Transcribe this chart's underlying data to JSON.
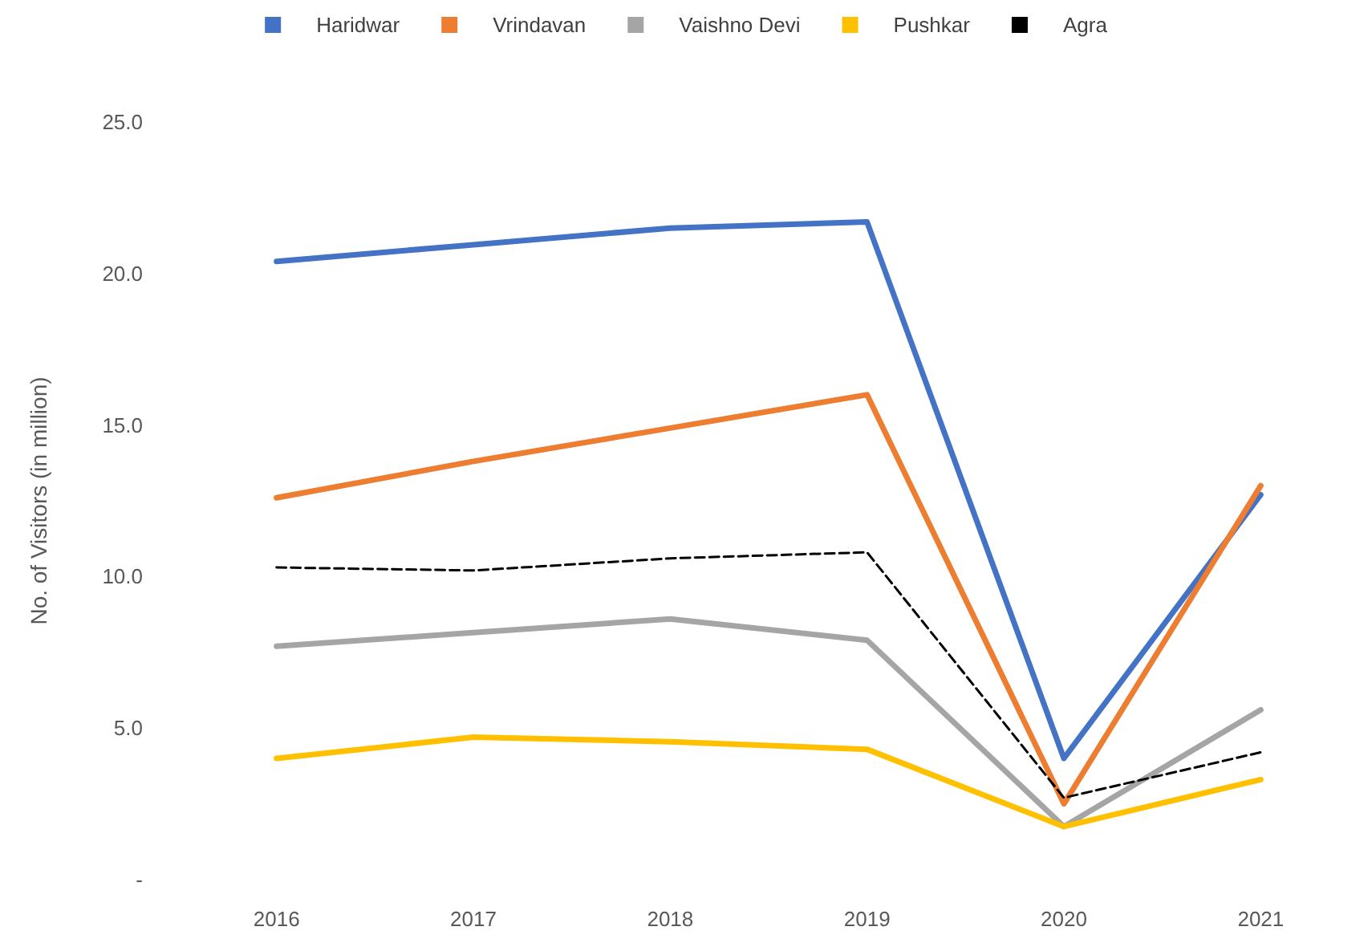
{
  "chart_data": {
    "type": "line",
    "ylabel": "No. of Visitors (in million)",
    "categories": [
      "2016",
      "2017",
      "2018",
      "2019",
      "2020",
      "2021"
    ],
    "series": [
      {
        "name": "Haridwar",
        "color": "#4472c4",
        "values": [
          20.4,
          20.95,
          21.5,
          21.7,
          4.0,
          12.7
        ]
      },
      {
        "name": "Vrindavan",
        "color": "#ed7d31",
        "values": [
          12.6,
          13.8,
          14.9,
          16.0,
          2.5,
          13.0
        ]
      },
      {
        "name": "Vaishno Devi",
        "color": "#a5a5a5",
        "values": [
          7.7,
          8.15,
          8.6,
          7.9,
          1.75,
          5.6
        ]
      },
      {
        "name": "Pushkar",
        "color": "#ffc000",
        "values": [
          4.0,
          4.7,
          4.55,
          4.3,
          1.75,
          3.3
        ]
      },
      {
        "name": "Agra",
        "color": "#000000",
        "line_style": "dashed",
        "values": [
          10.3,
          10.2,
          10.6,
          10.8,
          2.7,
          4.2
        ]
      }
    ],
    "ylim": [
      0,
      25
    ],
    "yticks": [
      {
        "value": 0,
        "label": "-"
      },
      {
        "value": 5,
        "label": "5.0"
      },
      {
        "value": 10,
        "label": "10.0"
      },
      {
        "value": 15,
        "label": "15.0"
      },
      {
        "value": 20,
        "label": "20.0"
      },
      {
        "value": 25,
        "label": "25.0"
      }
    ],
    "grid": false,
    "legend": "top",
    "marker": "none",
    "line_style": "solid"
  }
}
